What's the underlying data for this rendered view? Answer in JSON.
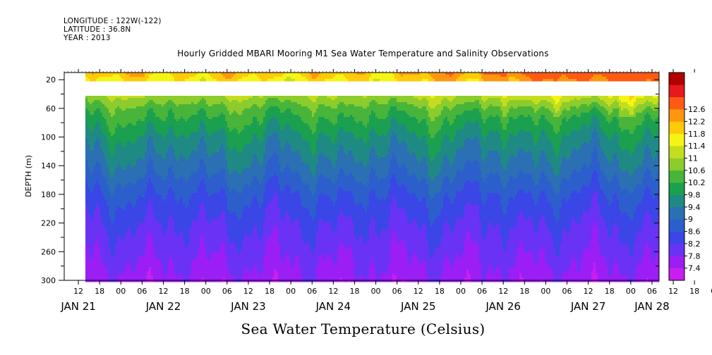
{
  "header": {
    "longitude": "LONGITUDE : 122W(-122)",
    "latitude": "LATITUDE : 36.8N",
    "year": "YEAR : 2013"
  },
  "chart_data": {
    "type": "heatmap",
    "title": "Hourly Gridded MBARI Mooring M1 Sea Water Temperature and Salinity Observations",
    "xlabel": "Sea Water Temperature (Celsius)",
    "ylabel": "DEPTH (m)",
    "x_hour_ticks": [
      "12",
      "18",
      "00",
      "06",
      "12",
      "18",
      "00",
      "06",
      "12",
      "18",
      "00",
      "06",
      "12",
      "18",
      "00",
      "06",
      "12",
      "18",
      "00",
      "06",
      "12",
      "18",
      "00",
      "06",
      "12",
      "18",
      "00",
      "06",
      "12",
      "18",
      "00",
      "06"
    ],
    "x_day_labels": [
      "JAN 21",
      "JAN 22",
      "JAN 23",
      "JAN 24",
      "JAN 25",
      "JAN 26",
      "JAN 27",
      "JAN 28"
    ],
    "x_range_hours": [
      8,
      176
    ],
    "data_start_hour": 14,
    "y_ticks": [
      20,
      60,
      100,
      140,
      180,
      220,
      260,
      300
    ],
    "y_range": [
      10,
      300
    ],
    "y_reversed": true,
    "missing_depth_range": [
      20,
      40
    ],
    "colorbar_levels": [
      7.4,
      7.8,
      8.2,
      8.6,
      9,
      9.4,
      9.8,
      10.2,
      10.6,
      11,
      11.4,
      11.8,
      12.2,
      12.6
    ],
    "colorbar_colors": [
      "#c81ef0",
      "#9b1ef5",
      "#6a32f5",
      "#3a46e6",
      "#2c5fcc",
      "#2a70b2",
      "#1f8a84",
      "#1ba04f",
      "#49b43a",
      "#8ccc2c",
      "#c4de1e",
      "#f5f514",
      "#ffca0a",
      "#ff9610",
      "#ff5a14",
      "#e8191e",
      "#b30000"
    ],
    "temperature_profile": {
      "depths": [
        10,
        40,
        60,
        100,
        140,
        180,
        220,
        260,
        300
      ],
      "temps": [
        12.0,
        11.0,
        10.4,
        9.7,
        9.2,
        8.6,
        8.2,
        7.9,
        7.6
      ]
    }
  }
}
